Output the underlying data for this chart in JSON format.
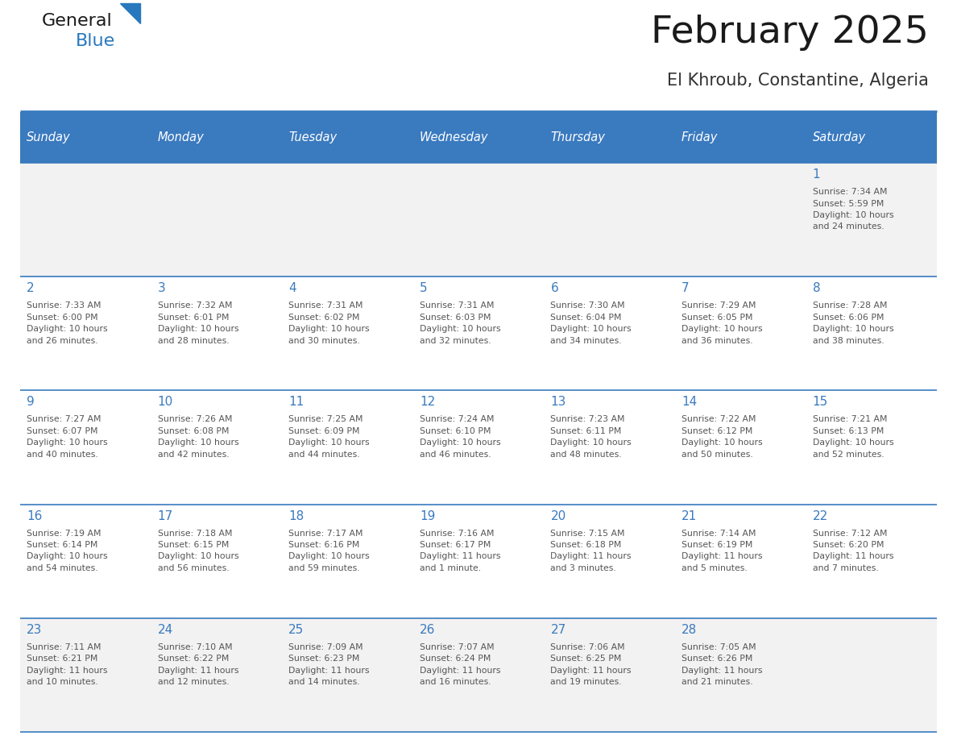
{
  "title": "February 2025",
  "subtitle": "El Khroub, Constantine, Algeria",
  "days_of_week": [
    "Sunday",
    "Monday",
    "Tuesday",
    "Wednesday",
    "Thursday",
    "Friday",
    "Saturday"
  ],
  "header_bg": "#3a7abf",
  "header_text": "#ffffff",
  "row_bg_white": "#ffffff",
  "row_bg_light": "#f2f2f2",
  "separator_color": "#3a7abf",
  "day_number_color": "#3a7abf",
  "cell_text_color": "#555555",
  "title_color": "#1a1a1a",
  "subtitle_color": "#333333",
  "logo_general_color": "#1a1a1a",
  "logo_blue_color": "#2878be",
  "calendar_data": [
    [
      {
        "day": null,
        "info": null
      },
      {
        "day": null,
        "info": null
      },
      {
        "day": null,
        "info": null
      },
      {
        "day": null,
        "info": null
      },
      {
        "day": null,
        "info": null
      },
      {
        "day": null,
        "info": null
      },
      {
        "day": 1,
        "info": "Sunrise: 7:34 AM\nSunset: 5:59 PM\nDaylight: 10 hours\nand 24 minutes."
      }
    ],
    [
      {
        "day": 2,
        "info": "Sunrise: 7:33 AM\nSunset: 6:00 PM\nDaylight: 10 hours\nand 26 minutes."
      },
      {
        "day": 3,
        "info": "Sunrise: 7:32 AM\nSunset: 6:01 PM\nDaylight: 10 hours\nand 28 minutes."
      },
      {
        "day": 4,
        "info": "Sunrise: 7:31 AM\nSunset: 6:02 PM\nDaylight: 10 hours\nand 30 minutes."
      },
      {
        "day": 5,
        "info": "Sunrise: 7:31 AM\nSunset: 6:03 PM\nDaylight: 10 hours\nand 32 minutes."
      },
      {
        "day": 6,
        "info": "Sunrise: 7:30 AM\nSunset: 6:04 PM\nDaylight: 10 hours\nand 34 minutes."
      },
      {
        "day": 7,
        "info": "Sunrise: 7:29 AM\nSunset: 6:05 PM\nDaylight: 10 hours\nand 36 minutes."
      },
      {
        "day": 8,
        "info": "Sunrise: 7:28 AM\nSunset: 6:06 PM\nDaylight: 10 hours\nand 38 minutes."
      }
    ],
    [
      {
        "day": 9,
        "info": "Sunrise: 7:27 AM\nSunset: 6:07 PM\nDaylight: 10 hours\nand 40 minutes."
      },
      {
        "day": 10,
        "info": "Sunrise: 7:26 AM\nSunset: 6:08 PM\nDaylight: 10 hours\nand 42 minutes."
      },
      {
        "day": 11,
        "info": "Sunrise: 7:25 AM\nSunset: 6:09 PM\nDaylight: 10 hours\nand 44 minutes."
      },
      {
        "day": 12,
        "info": "Sunrise: 7:24 AM\nSunset: 6:10 PM\nDaylight: 10 hours\nand 46 minutes."
      },
      {
        "day": 13,
        "info": "Sunrise: 7:23 AM\nSunset: 6:11 PM\nDaylight: 10 hours\nand 48 minutes."
      },
      {
        "day": 14,
        "info": "Sunrise: 7:22 AM\nSunset: 6:12 PM\nDaylight: 10 hours\nand 50 minutes."
      },
      {
        "day": 15,
        "info": "Sunrise: 7:21 AM\nSunset: 6:13 PM\nDaylight: 10 hours\nand 52 minutes."
      }
    ],
    [
      {
        "day": 16,
        "info": "Sunrise: 7:19 AM\nSunset: 6:14 PM\nDaylight: 10 hours\nand 54 minutes."
      },
      {
        "day": 17,
        "info": "Sunrise: 7:18 AM\nSunset: 6:15 PM\nDaylight: 10 hours\nand 56 minutes."
      },
      {
        "day": 18,
        "info": "Sunrise: 7:17 AM\nSunset: 6:16 PM\nDaylight: 10 hours\nand 59 minutes."
      },
      {
        "day": 19,
        "info": "Sunrise: 7:16 AM\nSunset: 6:17 PM\nDaylight: 11 hours\nand 1 minute."
      },
      {
        "day": 20,
        "info": "Sunrise: 7:15 AM\nSunset: 6:18 PM\nDaylight: 11 hours\nand 3 minutes."
      },
      {
        "day": 21,
        "info": "Sunrise: 7:14 AM\nSunset: 6:19 PM\nDaylight: 11 hours\nand 5 minutes."
      },
      {
        "day": 22,
        "info": "Sunrise: 7:12 AM\nSunset: 6:20 PM\nDaylight: 11 hours\nand 7 minutes."
      }
    ],
    [
      {
        "day": 23,
        "info": "Sunrise: 7:11 AM\nSunset: 6:21 PM\nDaylight: 11 hours\nand 10 minutes."
      },
      {
        "day": 24,
        "info": "Sunrise: 7:10 AM\nSunset: 6:22 PM\nDaylight: 11 hours\nand 12 minutes."
      },
      {
        "day": 25,
        "info": "Sunrise: 7:09 AM\nSunset: 6:23 PM\nDaylight: 11 hours\nand 14 minutes."
      },
      {
        "day": 26,
        "info": "Sunrise: 7:07 AM\nSunset: 6:24 PM\nDaylight: 11 hours\nand 16 minutes."
      },
      {
        "day": 27,
        "info": "Sunrise: 7:06 AM\nSunset: 6:25 PM\nDaylight: 11 hours\nand 19 minutes."
      },
      {
        "day": 28,
        "info": "Sunrise: 7:05 AM\nSunset: 6:26 PM\nDaylight: 11 hours\nand 21 minutes."
      },
      {
        "day": null,
        "info": null
      }
    ]
  ]
}
